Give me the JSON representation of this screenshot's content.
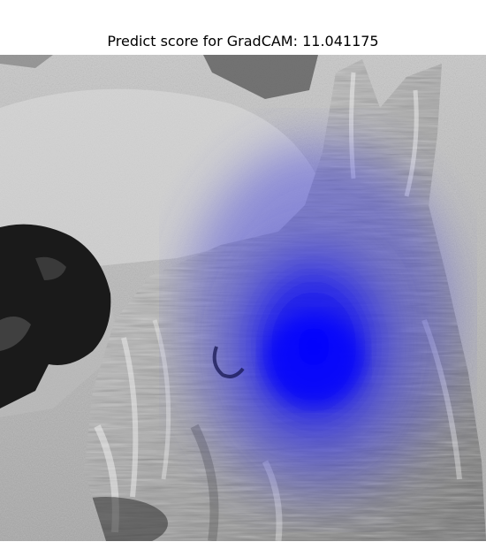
{
  "figure": {
    "title": "Predict score for GradCAM: 11.041175"
  },
  "image": {
    "colormap": "grayscale",
    "heatmap_color": "#0000ff",
    "depicted": [
      "dog",
      "sand"
    ]
  }
}
